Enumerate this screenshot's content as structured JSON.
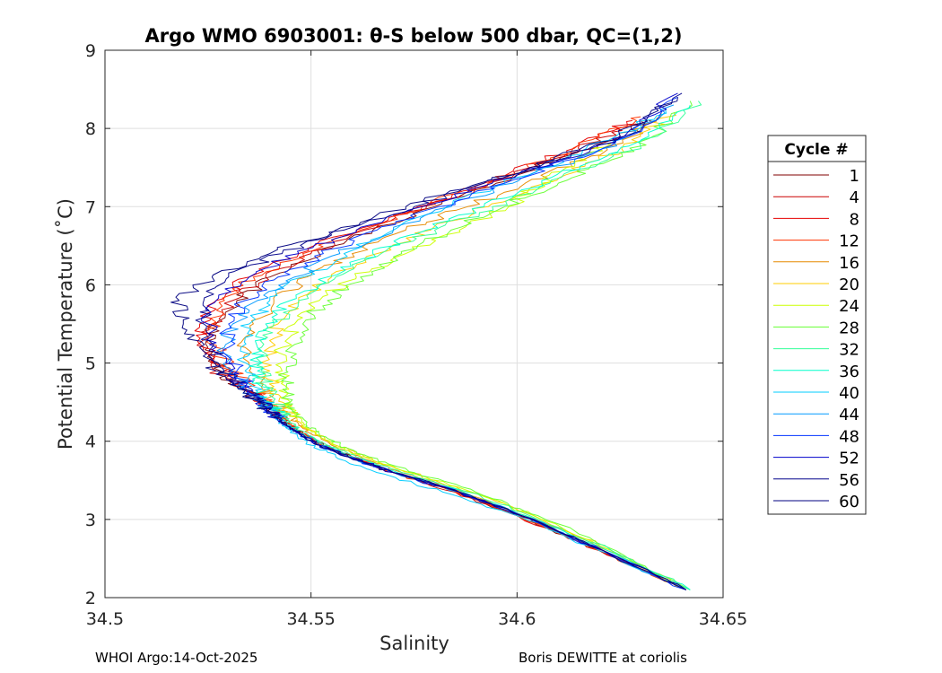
{
  "chart_data": {
    "type": "line",
    "title": "Argo WMO 6903001: θ-S below 500 dbar,  QC=(1,2)",
    "xlabel": "Salinity",
    "ylabel": "Potential Temperature (˚C)",
    "xlim": [
      34.5,
      34.65
    ],
    "ylim": [
      2,
      9
    ],
    "xticks": [
      34.5,
      34.55,
      34.6,
      34.65
    ],
    "xtick_labels": [
      "34.5",
      "34.55",
      "34.6",
      "34.65"
    ],
    "yticks": [
      2,
      3,
      4,
      5,
      6,
      7,
      8,
      9
    ],
    "ytick_labels": [
      "2",
      "3",
      "4",
      "5",
      "6",
      "7",
      "8",
      "9"
    ],
    "grid": true,
    "colormap": "jet",
    "legend": {
      "title": "Cycle #",
      "location": "outside-right",
      "entries": [
        "1",
        "4",
        "8",
        "12",
        "16",
        "20",
        "24",
        "28",
        "32",
        "36",
        "40",
        "44",
        "48",
        "52",
        "56",
        "60"
      ],
      "colors": [
        "#800000",
        "#cc0000",
        "#e60000",
        "#ff3300",
        "#e68a00",
        "#ffcc00",
        "#ccff00",
        "#66ff33",
        "#33ff99",
        "#00ffcc",
        "#00ccff",
        "#0099ff",
        "#0033ff",
        "#0000cc",
        "#00008b",
        "#000080"
      ]
    },
    "series": [
      {
        "name": "1",
        "x": [
          34.641,
          34.62,
          34.6,
          34.585,
          34.57,
          34.56,
          34.553,
          34.548,
          34.545,
          34.542,
          34.538,
          34.532,
          34.528,
          34.525,
          34.527,
          34.532,
          34.54,
          34.552,
          34.565,
          34.58,
          34.595,
          34.61,
          34.625,
          34.632
        ],
        "y": [
          2.1,
          2.6,
          3.05,
          3.35,
          3.6,
          3.8,
          3.95,
          4.1,
          4.2,
          4.35,
          4.5,
          4.7,
          4.9,
          5.2,
          5.5,
          5.8,
          6.1,
          6.4,
          6.7,
          7.0,
          7.3,
          7.6,
          7.9,
          8.1
        ]
      },
      {
        "name": "4",
        "x": [
          34.641,
          34.62,
          34.6,
          34.585,
          34.57,
          34.56,
          34.553,
          34.548,
          34.545,
          34.542,
          34.538,
          34.532,
          34.527,
          34.524,
          34.526,
          34.531,
          34.539,
          34.55,
          34.563,
          34.578,
          34.593,
          34.608,
          34.622,
          34.63
        ],
        "y": [
          2.1,
          2.6,
          3.05,
          3.35,
          3.6,
          3.8,
          3.95,
          4.1,
          4.2,
          4.35,
          4.5,
          4.7,
          4.9,
          5.2,
          5.5,
          5.8,
          6.1,
          6.4,
          6.7,
          7.0,
          7.3,
          7.6,
          7.9,
          8.1
        ]
      },
      {
        "name": "8",
        "x": [
          34.641,
          34.62,
          34.6,
          34.585,
          34.57,
          34.56,
          34.553,
          34.548,
          34.545,
          34.542,
          34.539,
          34.534,
          34.529,
          34.524,
          34.523,
          34.527,
          34.535,
          34.547,
          34.561,
          34.576,
          34.592,
          34.607,
          34.62,
          34.628
        ],
        "y": [
          2.1,
          2.6,
          3.05,
          3.35,
          3.6,
          3.8,
          3.95,
          4.1,
          4.2,
          4.35,
          4.5,
          4.7,
          4.9,
          5.2,
          5.5,
          5.8,
          6.1,
          6.4,
          6.7,
          7.0,
          7.3,
          7.6,
          7.9,
          8.1
        ]
      },
      {
        "name": "12",
        "x": [
          34.641,
          34.62,
          34.6,
          34.585,
          34.57,
          34.56,
          34.553,
          34.548,
          34.545,
          34.542,
          34.539,
          34.535,
          34.531,
          34.527,
          34.526,
          34.529,
          34.536,
          34.548,
          34.562,
          34.577,
          34.593,
          34.608,
          34.62,
          34.63
        ],
        "y": [
          2.1,
          2.6,
          3.05,
          3.35,
          3.6,
          3.8,
          3.95,
          4.1,
          4.2,
          4.35,
          4.5,
          4.7,
          4.9,
          5.2,
          5.5,
          5.8,
          6.1,
          6.4,
          6.7,
          7.0,
          7.3,
          7.6,
          7.9,
          8.15
        ]
      },
      {
        "name": "16",
        "x": [
          34.641,
          34.622,
          34.602,
          34.587,
          34.572,
          34.562,
          34.555,
          34.55,
          34.547,
          34.544,
          34.541,
          34.538,
          34.535,
          34.534,
          34.536,
          34.541,
          34.549,
          34.56,
          34.573,
          34.588,
          34.602,
          34.616,
          34.628,
          34.635
        ],
        "y": [
          2.1,
          2.6,
          3.05,
          3.35,
          3.6,
          3.8,
          3.95,
          4.1,
          4.2,
          4.35,
          4.5,
          4.7,
          4.9,
          5.2,
          5.5,
          5.8,
          6.1,
          6.4,
          6.7,
          7.0,
          7.3,
          7.6,
          7.9,
          8.2
        ]
      },
      {
        "name": "20",
        "x": [
          34.641,
          34.623,
          34.604,
          34.589,
          34.574,
          34.563,
          34.556,
          34.551,
          34.548,
          34.545,
          34.543,
          34.541,
          34.54,
          34.54,
          34.542,
          34.547,
          34.555,
          34.566,
          34.579,
          34.593,
          34.607,
          34.62,
          34.63,
          34.638
        ],
        "y": [
          2.1,
          2.6,
          3.05,
          3.35,
          3.6,
          3.8,
          3.95,
          4.1,
          4.2,
          4.35,
          4.5,
          4.7,
          4.9,
          5.2,
          5.5,
          5.8,
          6.1,
          6.4,
          6.7,
          7.0,
          7.3,
          7.6,
          7.9,
          8.2
        ]
      },
      {
        "name": "24",
        "x": [
          34.641,
          34.623,
          34.604,
          34.589,
          34.574,
          34.563,
          34.556,
          34.551,
          34.548,
          34.546,
          34.545,
          34.544,
          34.543,
          34.543,
          34.546,
          34.552,
          34.561,
          34.573,
          34.586,
          34.598,
          34.606,
          34.612,
          34.618,
          34.622
        ],
        "y": [
          2.1,
          2.6,
          3.05,
          3.35,
          3.6,
          3.8,
          3.95,
          4.1,
          4.2,
          4.35,
          4.5,
          4.7,
          4.9,
          5.2,
          5.5,
          5.8,
          6.1,
          6.4,
          6.7,
          7.0,
          7.3,
          7.5,
          7.7,
          7.8
        ]
      },
      {
        "name": "28",
        "x": [
          34.642,
          34.624,
          34.605,
          34.59,
          34.575,
          34.564,
          34.557,
          34.552,
          34.549,
          34.547,
          34.545,
          34.544,
          34.544,
          34.545,
          34.548,
          34.554,
          34.562,
          34.572,
          34.584,
          34.597,
          34.61,
          34.623,
          34.633,
          34.642
        ],
        "y": [
          2.1,
          2.6,
          3.05,
          3.35,
          3.6,
          3.8,
          3.95,
          4.1,
          4.2,
          4.35,
          4.5,
          4.7,
          4.9,
          5.2,
          5.5,
          5.8,
          6.1,
          6.4,
          6.7,
          7.0,
          7.3,
          7.6,
          7.9,
          8.35
        ]
      },
      {
        "name": "32",
        "x": [
          34.642,
          34.623,
          34.603,
          34.588,
          34.572,
          34.561,
          34.554,
          34.549,
          34.546,
          34.543,
          34.541,
          34.539,
          34.538,
          34.538,
          34.541,
          34.547,
          34.556,
          34.567,
          34.58,
          34.594,
          34.608,
          34.622,
          34.634,
          34.644
        ],
        "y": [
          2.1,
          2.6,
          3.05,
          3.35,
          3.6,
          3.8,
          3.95,
          4.1,
          4.2,
          4.35,
          4.5,
          4.7,
          4.9,
          5.2,
          5.5,
          5.8,
          6.1,
          6.4,
          6.7,
          7.0,
          7.3,
          7.6,
          7.9,
          8.35
        ]
      },
      {
        "name": "36",
        "x": [
          34.642,
          34.622,
          34.602,
          34.587,
          34.571,
          34.56,
          34.553,
          34.548,
          34.545,
          34.542,
          34.54,
          34.538,
          34.537,
          34.537,
          34.539,
          34.545,
          34.554,
          34.565,
          34.578,
          34.592,
          34.606,
          34.62,
          34.632,
          34.642
        ],
        "y": [
          2.1,
          2.6,
          3.05,
          3.35,
          3.6,
          3.8,
          3.95,
          4.1,
          4.2,
          4.35,
          4.5,
          4.7,
          4.9,
          5.2,
          5.5,
          5.8,
          6.1,
          6.4,
          6.7,
          7.0,
          7.3,
          7.6,
          7.9,
          8.3
        ]
      },
      {
        "name": "40",
        "x": [
          34.641,
          34.62,
          34.6,
          34.582,
          34.566,
          34.556,
          34.55,
          34.546,
          34.543,
          34.541,
          34.539,
          34.536,
          34.534,
          34.533,
          34.535,
          34.54,
          34.548,
          34.558,
          34.57,
          34.583,
          34.597,
          34.611,
          34.624,
          34.636
        ],
        "y": [
          2.1,
          2.6,
          3.05,
          3.35,
          3.6,
          3.8,
          3.95,
          4.1,
          4.2,
          4.35,
          4.5,
          4.7,
          4.9,
          5.2,
          5.5,
          5.8,
          6.1,
          6.4,
          6.7,
          7.0,
          7.3,
          7.6,
          7.9,
          8.25
        ]
      },
      {
        "name": "44",
        "x": [
          34.641,
          34.621,
          34.601,
          34.586,
          34.57,
          34.559,
          34.552,
          34.547,
          34.544,
          34.541,
          34.538,
          34.534,
          34.531,
          34.529,
          34.531,
          34.537,
          34.546,
          34.557,
          34.57,
          34.584,
          34.599,
          34.614,
          34.627,
          34.638
        ],
        "y": [
          2.1,
          2.6,
          3.05,
          3.35,
          3.6,
          3.8,
          3.95,
          4.1,
          4.2,
          4.35,
          4.5,
          4.7,
          4.9,
          5.2,
          5.5,
          5.8,
          6.1,
          6.4,
          6.7,
          7.0,
          7.3,
          7.6,
          7.9,
          8.3
        ]
      },
      {
        "name": "48",
        "x": [
          34.641,
          34.621,
          34.601,
          34.586,
          34.57,
          34.559,
          34.552,
          34.547,
          34.544,
          34.541,
          34.538,
          34.535,
          34.532,
          34.53,
          34.53,
          34.534,
          34.542,
          34.553,
          34.566,
          34.581,
          34.597,
          34.613,
          34.627,
          34.639
        ],
        "y": [
          2.1,
          2.6,
          3.05,
          3.35,
          3.6,
          3.8,
          3.95,
          4.1,
          4.2,
          4.35,
          4.5,
          4.7,
          4.9,
          5.2,
          5.5,
          5.8,
          6.1,
          6.4,
          6.7,
          7.0,
          7.3,
          7.6,
          7.9,
          8.4
        ]
      },
      {
        "name": "52",
        "x": [
          34.641,
          34.621,
          34.601,
          34.586,
          34.57,
          34.559,
          34.552,
          34.547,
          34.544,
          34.541,
          34.538,
          34.534,
          34.53,
          34.527,
          34.525,
          34.527,
          34.535,
          34.547,
          34.561,
          34.577,
          34.594,
          34.611,
          34.626,
          34.639
        ],
        "y": [
          2.1,
          2.6,
          3.05,
          3.35,
          3.6,
          3.8,
          3.95,
          4.1,
          4.2,
          4.35,
          4.5,
          4.7,
          4.9,
          5.2,
          5.5,
          5.8,
          6.1,
          6.4,
          6.7,
          7.0,
          7.3,
          7.6,
          7.9,
          8.45
        ]
      },
      {
        "name": "56",
        "x": [
          34.641,
          34.621,
          34.601,
          34.586,
          34.57,
          34.559,
          34.552,
          34.547,
          34.544,
          34.541,
          34.538,
          34.533,
          34.529,
          34.526,
          34.524,
          34.524,
          34.53,
          34.543,
          34.558,
          34.575,
          34.592,
          34.61,
          34.626,
          34.64
        ],
        "y": [
          2.1,
          2.6,
          3.05,
          3.35,
          3.6,
          3.8,
          3.95,
          4.1,
          4.2,
          4.35,
          4.5,
          4.7,
          4.9,
          5.2,
          5.5,
          5.8,
          6.1,
          6.4,
          6.7,
          7.0,
          7.3,
          7.6,
          7.9,
          8.45
        ]
      },
      {
        "name": "60",
        "x": [
          34.641,
          34.621,
          34.601,
          34.586,
          34.57,
          34.559,
          34.552,
          34.547,
          34.544,
          34.541,
          34.537,
          34.532,
          34.527,
          34.523,
          34.519,
          34.518,
          34.526,
          34.54,
          34.556,
          34.573,
          34.591,
          34.609,
          34.625,
          34.639
        ],
        "y": [
          2.1,
          2.6,
          3.05,
          3.35,
          3.6,
          3.8,
          3.95,
          4.1,
          4.2,
          4.35,
          4.5,
          4.7,
          4.9,
          5.2,
          5.5,
          5.8,
          6.1,
          6.4,
          6.7,
          7.0,
          7.3,
          7.6,
          7.9,
          8.4
        ]
      }
    ]
  },
  "footer": {
    "left": "WHOI Argo:14-Oct-2025",
    "right": "Boris DEWITTE at coriolis"
  }
}
